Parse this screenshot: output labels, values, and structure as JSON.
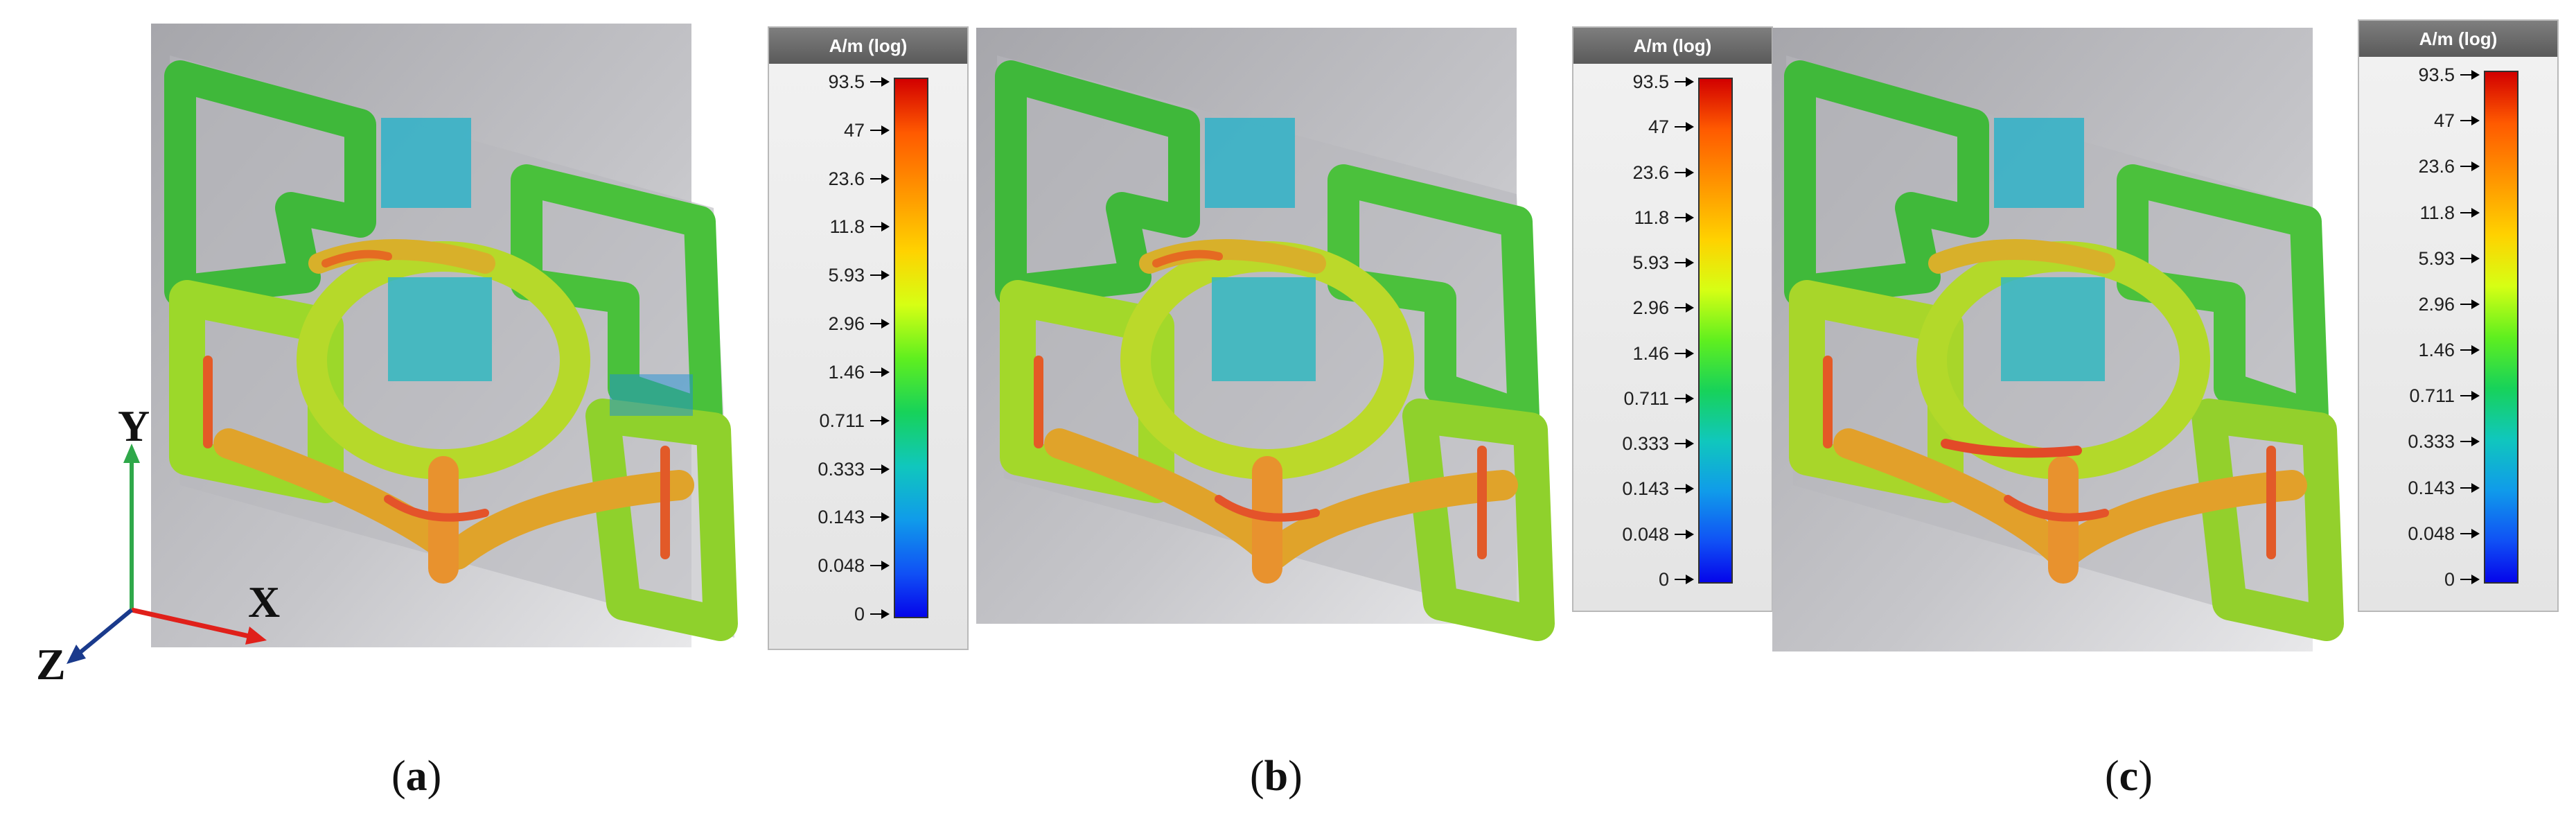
{
  "legend": {
    "unit": "A/m (log)",
    "ticks": [
      "93.5",
      "47",
      "23.6",
      "11.8",
      "5.93",
      "2.96",
      "1.46",
      "0.711",
      "0.333",
      "0.143",
      "0.048",
      "0"
    ]
  },
  "axes": {
    "x": "X",
    "y": "Y",
    "z": "Z"
  },
  "panels": [
    {
      "label": "a"
    },
    {
      "label": "b"
    },
    {
      "label": "c"
    }
  ],
  "colors": {
    "background": "#ffffff",
    "scene_gray": "#a9a9ad",
    "axis_x": "#e0201a",
    "axis_y": "#2fa84a",
    "axis_z": "#1a3a8c"
  }
}
